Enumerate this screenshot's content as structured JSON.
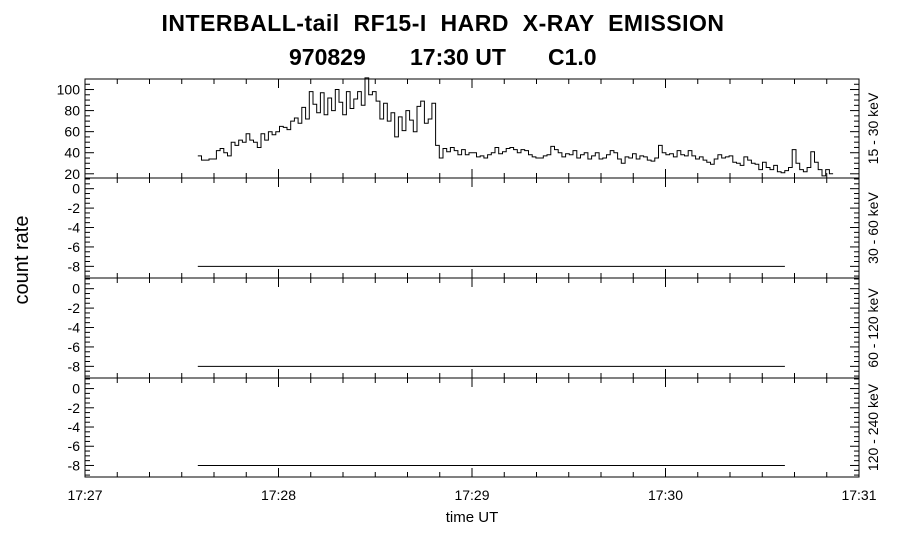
{
  "header": {
    "title": "INTERBALL-tail  RF15-I  HARD  X-RAY  EMISSION",
    "date": "970829",
    "time": "17:30 UT",
    "flare_class": "C1.0"
  },
  "chart_data": {
    "type": "line",
    "style": "step",
    "ylabel": "count rate",
    "xlabel": "time UT",
    "x_ticks": [
      "17:27",
      "17:28",
      "17:29",
      "17:30",
      "17:31"
    ],
    "x_range_minutes": [
      0,
      4
    ],
    "panels": [
      {
        "name": "15 - 30 keV",
        "ylim": [
          16,
          110
        ],
        "y_ticks": [
          "20",
          "40",
          "60",
          "80",
          "100"
        ],
        "y_tick_values": [
          20,
          40,
          60,
          80,
          100
        ],
        "x_start": 0.583,
        "x_step": 0.0192,
        "values": [
          37,
          33,
          33,
          34,
          34,
          42,
          44,
          40,
          37,
          50,
          47,
          52,
          50,
          58,
          52,
          50,
          45,
          58,
          52,
          60,
          57,
          60,
          65,
          64,
          62,
          70,
          73,
          68,
          83,
          72,
          98,
          86,
          78,
          97,
          76,
          92,
          80,
          100,
          88,
          76,
          98,
          82,
          91,
          98,
          85,
          111,
          95,
          98,
          89,
          72,
          87,
          70,
          78,
          55,
          74,
          61,
          80,
          71,
          60,
          84,
          89,
          68,
          72,
          87,
          47,
          35,
          44,
          41,
          45,
          42,
          38,
          43,
          38,
          40,
          40,
          36,
          37,
          35,
          38,
          40,
          45,
          39,
          41,
          44,
          45,
          43,
          40,
          43,
          42,
          38,
          36,
          35,
          35,
          37,
          38,
          46,
          43,
          40,
          36,
          39,
          38,
          42,
          35,
          38,
          40,
          34,
          37,
          40,
          34,
          35,
          38,
          42,
          40,
          34,
          30,
          36,
          35,
          39,
          34,
          37,
          36,
          33,
          32,
          35,
          47,
          40,
          38,
          39,
          36,
          42,
          38,
          37,
          42,
          37,
          34,
          36,
          33,
          31,
          29,
          34,
          38,
          35,
          36,
          37,
          31,
          30,
          28,
          36,
          33,
          30,
          29,
          24,
          31,
          26,
          24,
          28,
          22,
          21,
          23,
          26,
          43,
          30,
          24,
          22,
          26,
          41,
          31,
          24,
          18,
          24,
          20
        ]
      },
      {
        "name": "30 - 60 keV",
        "ylim": [
          -9.2,
          1.1
        ],
        "y_ticks": [
          "0",
          "-2",
          "-4",
          "-6",
          "-8"
        ],
        "y_tick_values": [
          0,
          -2,
          -4,
          -6,
          -8
        ],
        "flat_value": -8,
        "flat_x_range": [
          0.583,
          3.617
        ]
      },
      {
        "name": "60 - 120 keV",
        "ylim": [
          -9.2,
          1.1
        ],
        "y_ticks": [
          "0",
          "-2",
          "-4",
          "-6",
          "-8"
        ],
        "y_tick_values": [
          0,
          -2,
          -4,
          -6,
          -8
        ],
        "flat_value": -8,
        "flat_x_range": [
          0.583,
          3.617
        ]
      },
      {
        "name": "120 - 240 keV",
        "ylim": [
          -9.2,
          1.1
        ],
        "y_ticks": [
          "0",
          "-2",
          "-4",
          "-6",
          "-8"
        ],
        "y_tick_values": [
          0,
          -2,
          -4,
          -6,
          -8
        ],
        "flat_value": -8,
        "flat_x_range": [
          0.583,
          3.617
        ]
      }
    ]
  }
}
